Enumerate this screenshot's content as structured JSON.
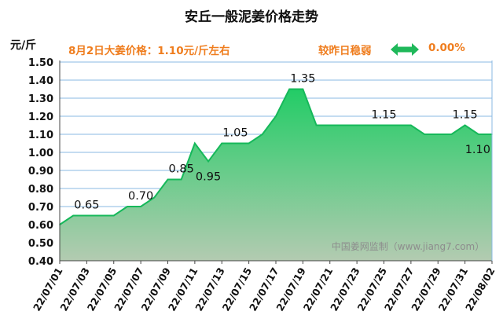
{
  "chart_data": {
    "type": "area",
    "title": "安丘一般泥姜价格走势",
    "ylabel": "元/斤",
    "ylim": [
      0.4,
      1.5
    ],
    "ytick_step": 0.1,
    "grid": true,
    "x_tick_labels": [
      "22/07/01",
      "22/07/03",
      "22/07/05",
      "22/07/07",
      "22/07/09",
      "22/07/11",
      "22/07/13",
      "22/07/15",
      "22/07/17",
      "22/07/19",
      "22/07/21",
      "22/07/23",
      "22/07/25",
      "22/07/27",
      "22/07/29",
      "22/07/31",
      "22/08/02"
    ],
    "x": [
      "22/07/01",
      "22/07/02",
      "22/07/03",
      "22/07/04",
      "22/07/05",
      "22/07/06",
      "22/07/07",
      "22/07/08",
      "22/07/09",
      "22/07/10",
      "22/07/11",
      "22/07/12",
      "22/07/13",
      "22/07/14",
      "22/07/15",
      "22/07/16",
      "22/07/17",
      "22/07/18",
      "22/07/19",
      "22/07/20",
      "22/07/21",
      "22/07/22",
      "22/07/23",
      "22/07/24",
      "22/07/25",
      "22/07/26",
      "22/07/27",
      "22/07/28",
      "22/07/29",
      "22/07/30",
      "22/07/31",
      "22/08/01",
      "22/08/02"
    ],
    "values": [
      0.6,
      0.65,
      0.65,
      0.65,
      0.65,
      0.7,
      0.7,
      0.75,
      0.85,
      0.85,
      1.05,
      0.95,
      1.05,
      1.05,
      1.05,
      1.1,
      1.2,
      1.35,
      1.35,
      1.15,
      1.15,
      1.15,
      1.15,
      1.15,
      1.15,
      1.15,
      1.15,
      1.1,
      1.1,
      1.1,
      1.15,
      1.1,
      1.1
    ],
    "annotations": [
      {
        "index": 2,
        "text": "0.65",
        "pos": "above"
      },
      {
        "index": 6,
        "text": "0.70",
        "pos": "above"
      },
      {
        "index": 9,
        "text": "0.85",
        "pos": "above"
      },
      {
        "index": 11,
        "text": "0.95",
        "pos": "below"
      },
      {
        "index": 13,
        "text": "1.05",
        "pos": "above"
      },
      {
        "index": 18,
        "text": "1.35",
        "pos": "above"
      },
      {
        "index": 24,
        "text": "1.15",
        "pos": "above"
      },
      {
        "index": 30,
        "text": "1.15",
        "pos": "above"
      },
      {
        "index": 32,
        "text": "1.10",
        "pos": "below-left"
      }
    ],
    "colors": {
      "line": "#16b85a",
      "fill_top": "#28cc6a",
      "fill_bottom": "#a9c7a9",
      "grid": "#8ab8e3",
      "arrow": "#1fb85a"
    }
  },
  "header": {
    "unit": "元/斤",
    "price_note": "8月2日大姜价格：1.10元/斤左右",
    "trend_label": "较昨日稳弱",
    "trend_pct": "0.00%",
    "trend_icon": "double-arrow-icon"
  },
  "watermark": "中国姜网监制（www.jiang7.com）"
}
